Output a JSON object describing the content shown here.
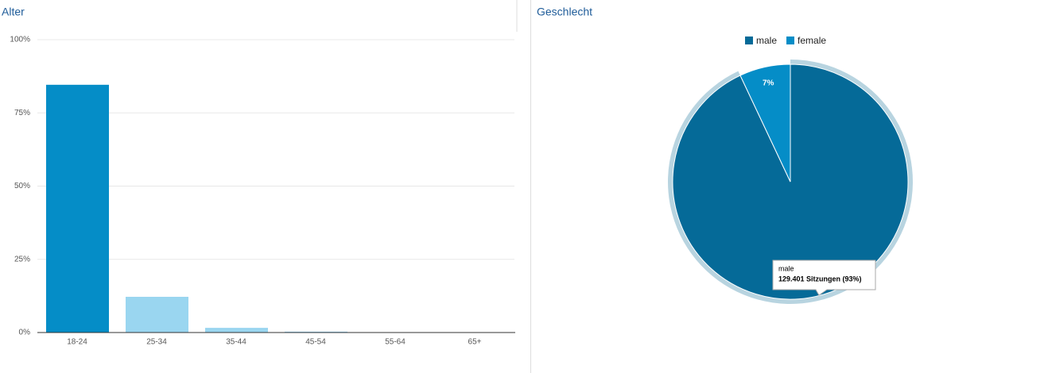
{
  "chart_data": [
    {
      "type": "bar",
      "title": "Alter",
      "categories": [
        "18-24",
        "25-34",
        "35-44",
        "45-54",
        "55-64",
        "65+"
      ],
      "values": [
        84.6,
        12.2,
        1.6,
        0.3,
        0,
        0
      ],
      "colors": [
        "#058dc7",
        "#9ad6f0",
        "#9ad6f0",
        "#9ad6f0",
        "#9ad6f0",
        "#9ad6f0"
      ],
      "ylim": [
        0,
        100
      ],
      "yticks": [
        {
          "value": 0,
          "label": "0%"
        },
        {
          "value": 25,
          "label": "25%"
        },
        {
          "value": 50,
          "label": "50%"
        },
        {
          "value": 75,
          "label": "75%"
        },
        {
          "value": 100,
          "label": "100%"
        }
      ],
      "grid": true
    },
    {
      "type": "pie",
      "title": "Geschlecht",
      "categories": [
        "male",
        "female"
      ],
      "values": [
        93,
        7
      ],
      "value_labels": [
        null,
        "7%"
      ],
      "colors": [
        "#056a98",
        "#058dc7"
      ],
      "legend": "top",
      "tooltip": {
        "title": "male",
        "text": "129.401 Sitzungen (93%)"
      }
    }
  ]
}
